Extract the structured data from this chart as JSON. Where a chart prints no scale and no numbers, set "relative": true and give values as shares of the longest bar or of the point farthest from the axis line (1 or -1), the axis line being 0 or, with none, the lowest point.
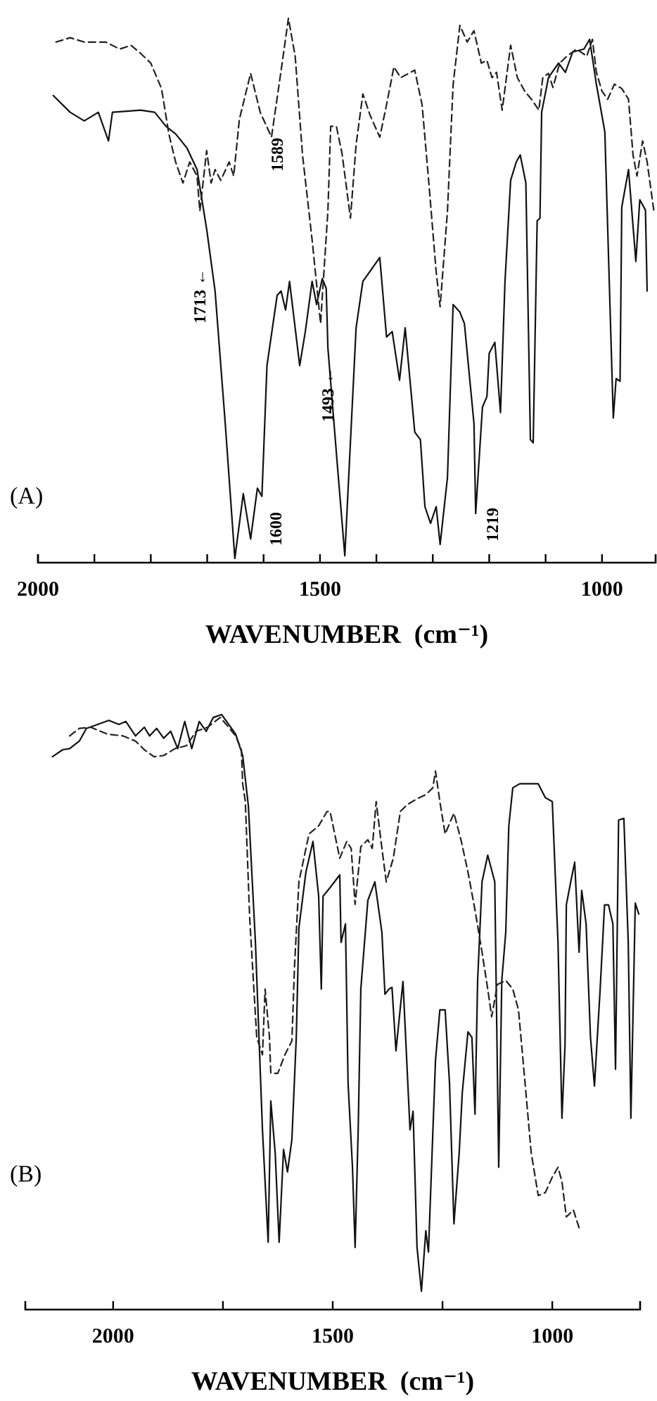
{
  "chart_data": [
    {
      "type": "line",
      "relative": true,
      "xlabel": "WAVENUMBER  (cm⁻¹)",
      "xlim": [
        2000,
        905
      ],
      "xticks": [
        2000,
        {
          "value": 1900,
          "label": null
        },
        {
          "value": 1800,
          "label": null
        },
        {
          "value": 1700,
          "label": null
        },
        {
          "value": 1600,
          "label": null
        },
        1500,
        {
          "value": 1400,
          "label": null
        },
        {
          "value": 1300,
          "label": null
        },
        {
          "value": 1200,
          "label": null
        },
        {
          "value": 1100,
          "label": null
        },
        1000
      ],
      "annotations": [
        "(A)",
        "1713 ←",
        "1589",
        "1493 ←",
        "1600",
        "1219"
      ],
      "series": [
        {
          "color": "#111111",
          "line_style": "solid",
          "x": [
            1973,
            1943,
            1918,
            1893,
            1875,
            1868,
            1818,
            1793,
            1773,
            1756,
            1736,
            1718,
            1701,
            1686,
            1668,
            1651,
            1636,
            1623,
            1611,
            1603,
            1594,
            1576,
            1569,
            1561,
            1554,
            1536,
            1526,
            1514,
            1506,
            1496,
            1489,
            1486,
            1469,
            1456,
            1436,
            1424,
            1394,
            1382,
            1372,
            1359,
            1349,
            1332,
            1322,
            1314,
            1304,
            1294,
            1287,
            1274,
            1264,
            1252,
            1244,
            1227,
            1224,
            1212,
            1204,
            1200,
            1190,
            1180,
            1172,
            1162,
            1152,
            1145,
            1135,
            1127,
            1122,
            1115,
            1110,
            1107,
            1095,
            1077,
            1065,
            1052,
            1032,
            1022,
            1010,
            995,
            980,
            975,
            968,
            965,
            953,
            940,
            933,
            923,
            920
          ],
          "values": [
            0.857,
            0.826,
            0.81,
            0.826,
            0.773,
            0.826,
            0.83,
            0.826,
            0.8,
            0.786,
            0.76,
            0.72,
            0.61,
            0.495,
            0.25,
            0.0,
            0.12,
            0.036,
            0.13,
            0.115,
            0.357,
            0.487,
            0.495,
            0.46,
            0.513,
            0.357,
            0.42,
            0.513,
            0.47,
            0.518,
            0.5,
            0.39,
            0.17,
            0.005,
            0.427,
            0.513,
            0.557,
            0.41,
            0.42,
            0.33,
            0.427,
            0.234,
            0.22,
            0.096,
            0.065,
            0.096,
            0.026,
            0.15,
            0.47,
            0.456,
            0.435,
            0.25,
            0.083,
            0.28,
            0.3,
            0.38,
            0.4,
            0.27,
            0.513,
            0.7,
            0.734,
            0.747,
            0.695,
            0.22,
            0.214,
            0.625,
            0.63,
            0.826,
            0.89,
            0.917,
            0.9,
            0.9375,
            0.943,
            0.961,
            0.878,
            0.79,
            0.26,
            0.333,
            0.328,
            0.65,
            0.72,
            0.55,
            0.664,
            0.645,
            0.495
          ]
        },
        {
          "color": "#222222",
          "line_style": "dashed",
          "x": [
            1968,
            1943,
            1918,
            1880,
            1855,
            1835,
            1818,
            1800,
            1781,
            1768,
            1756,
            1743,
            1731,
            1718,
            1713,
            1701,
            1693,
            1686,
            1676,
            1661,
            1653,
            1643,
            1623,
            1606,
            1586,
            1569,
            1556,
            1544,
            1531,
            1514,
            1499,
            1486,
            1481,
            1471,
            1461,
            1446,
            1436,
            1424,
            1411,
            1394,
            1382,
            1369,
            1357,
            1332,
            1319,
            1307,
            1294,
            1287,
            1274,
            1264,
            1252,
            1239,
            1227,
            1214,
            1204,
            1195,
            1187,
            1177,
            1162,
            1150,
            1137,
            1125,
            1112,
            1105,
            1095,
            1087,
            1075,
            1062,
            1045,
            1027,
            1017,
            1010,
            1000,
            990,
            978,
            965,
            953,
            945,
            938,
            928,
            920,
            908
          ],
          "values": [
            0.956,
            0.964,
            0.956,
            0.956,
            0.943,
            0.95,
            0.935,
            0.917,
            0.87,
            0.786,
            0.734,
            0.695,
            0.734,
            0.708,
            0.643,
            0.755,
            0.695,
            0.72,
            0.7,
            0.734,
            0.708,
            0.8125,
            0.898,
            0.826,
            0.78,
            0.903,
            1.0,
            0.93,
            0.747,
            0.59,
            0.435,
            0.643,
            0.8,
            0.8,
            0.75,
            0.63,
            0.766,
            0.86,
            0.82,
            0.78,
            0.84,
            0.91,
            0.89,
            0.904,
            0.84,
            0.695,
            0.53,
            0.466,
            0.643,
            0.877,
            0.987,
            0.956,
            0.977,
            0.917,
            0.922,
            0.89,
            0.9,
            0.83,
            0.95,
            0.89,
            0.865,
            0.85,
            0.83,
            0.89,
            0.898,
            0.872,
            0.917,
            0.93,
            0.943,
            0.93,
            0.961,
            0.9,
            0.865,
            0.85,
            0.878,
            0.87,
            0.85,
            0.747,
            0.708,
            0.773,
            0.734,
            0.643
          ]
        }
      ]
    },
    {
      "type": "line",
      "relative": true,
      "xlabel": "WAVENUMBER  (cm⁻¹)",
      "xlim": [
        2200,
        800
      ],
      "xticks": [
        2000,
        {
          "value": 1750,
          "label": null
        },
        1500,
        {
          "value": 1250,
          "label": null
        },
        1000
      ],
      "annotations": [
        "(B)"
      ],
      "series": [
        {
          "color": "#111111",
          "line_style": "solid",
          "x": [
            2138,
            2115,
            2099,
            2077,
            2061,
            2035,
            2010,
            1987,
            1971,
            1949,
            1929,
            1917,
            1901,
            1885,
            1869,
            1853,
            1837,
            1821,
            1804,
            1788,
            1772,
            1753,
            1737,
            1721,
            1705,
            1692,
            1676,
            1660,
            1647,
            1641,
            1631,
            1622,
            1612,
            1603,
            1593,
            1583,
            1577,
            1561,
            1545,
            1532,
            1526,
            1522,
            1506,
            1484,
            1481,
            1471,
            1465,
            1455,
            1449,
            1442,
            1436,
            1420,
            1404,
            1388,
            1381,
            1372,
            1365,
            1356,
            1340,
            1324,
            1317,
            1308,
            1298,
            1288,
            1282,
            1266,
            1256,
            1244,
            1234,
            1224,
            1212,
            1205,
            1192,
            1183,
            1176,
            1170,
            1160,
            1147,
            1131,
            1122,
            1115,
            1106,
            1099,
            1090,
            1074,
            1051,
            1032,
            1016,
            1000,
            987,
            978,
            971,
            968,
            958,
            949,
            939,
            933,
            923,
            913,
            904,
            891,
            881,
            872,
            862,
            856,
            849,
            837,
            827,
            821,
            811,
            803
          ],
          "values": [
            0.927,
            0.939,
            0.941,
            0.954,
            0.976,
            0.983,
            0.99,
            0.983,
            0.988,
            0.963,
            0.978,
            0.963,
            0.976,
            0.959,
            0.971,
            0.941,
            0.988,
            0.941,
            0.988,
            0.971,
            0.995,
            1.0,
            0.983,
            0.966,
            0.929,
            0.841,
            0.605,
            0.28,
            0.085,
            0.33,
            0.24,
            0.085,
            0.246,
            0.207,
            0.263,
            0.44,
            0.63,
            0.727,
            0.78,
            0.685,
            0.524,
            0.685,
            0.7,
            0.722,
            0.605,
            0.637,
            0.36,
            0.215,
            0.076,
            0.28,
            0.524,
            0.678,
            0.71,
            0.622,
            0.515,
            0.524,
            0.527,
            0.417,
            0.537,
            0.28,
            0.312,
            0.076,
            0.0,
            0.105,
            0.068,
            0.4,
            0.488,
            0.488,
            0.36,
            0.117,
            0.24,
            0.344,
            0.45,
            0.44,
            0.307,
            0.539,
            0.71,
            0.756,
            0.71,
            0.215,
            0.539,
            0.622,
            0.807,
            0.873,
            0.88,
            0.88,
            0.88,
            0.856,
            0.849,
            0.605,
            0.3,
            0.427,
            0.67,
            0.71,
            0.744,
            0.588,
            0.695,
            0.637,
            0.44,
            0.356,
            0.524,
            0.67,
            0.67,
            0.637,
            0.385,
            0.817,
            0.82,
            0.605,
            0.3,
            0.673,
            0.654
          ]
        },
        {
          "color": "#222222",
          "line_style": "dashed",
          "x": [
            2099,
            2077,
            2051,
            2013,
            1978,
            1949,
            1929,
            1907,
            1885,
            1859,
            1833,
            1811,
            1785,
            1756,
            1737,
            1721,
            1708,
            1705,
            1699,
            1689,
            1673,
            1660,
            1654,
            1644,
            1641,
            1625,
            1609,
            1593,
            1587,
            1577,
            1554,
            1532,
            1513,
            1506,
            1484,
            1468,
            1458,
            1449,
            1436,
            1420,
            1410,
            1401,
            1388,
            1378,
            1362,
            1346,
            1330,
            1308,
            1288,
            1272,
            1266,
            1256,
            1244,
            1224,
            1208,
            1192,
            1176,
            1160,
            1147,
            1138,
            1125,
            1106,
            1090,
            1077,
            1064,
            1048,
            1032,
            1016,
            1000,
            987,
            978,
            968,
            952,
            939
          ],
          "values": [
            0.963,
            0.976,
            0.978,
            0.966,
            0.963,
            0.954,
            0.939,
            0.927,
            0.929,
            0.941,
            0.946,
            0.971,
            0.978,
            0.995,
            0.978,
            0.963,
            0.939,
            0.88,
            0.849,
            0.646,
            0.44,
            0.41,
            0.524,
            0.44,
            0.378,
            0.378,
            0.41,
            0.434,
            0.563,
            0.71,
            0.793,
            0.807,
            0.832,
            0.832,
            0.751,
            0.78,
            0.768,
            0.671,
            0.771,
            0.783,
            0.768,
            0.849,
            0.768,
            0.71,
            0.751,
            0.832,
            0.844,
            0.854,
            0.861,
            0.873,
            0.902,
            0.849,
            0.793,
            0.829,
            0.783,
            0.727,
            0.661,
            0.588,
            0.524,
            0.476,
            0.532,
            0.539,
            0.524,
            0.488,
            0.378,
            0.24,
            0.166,
            0.171,
            0.198,
            0.215,
            0.19,
            0.129,
            0.141,
            0.11
          ]
        }
      ]
    }
  ]
}
